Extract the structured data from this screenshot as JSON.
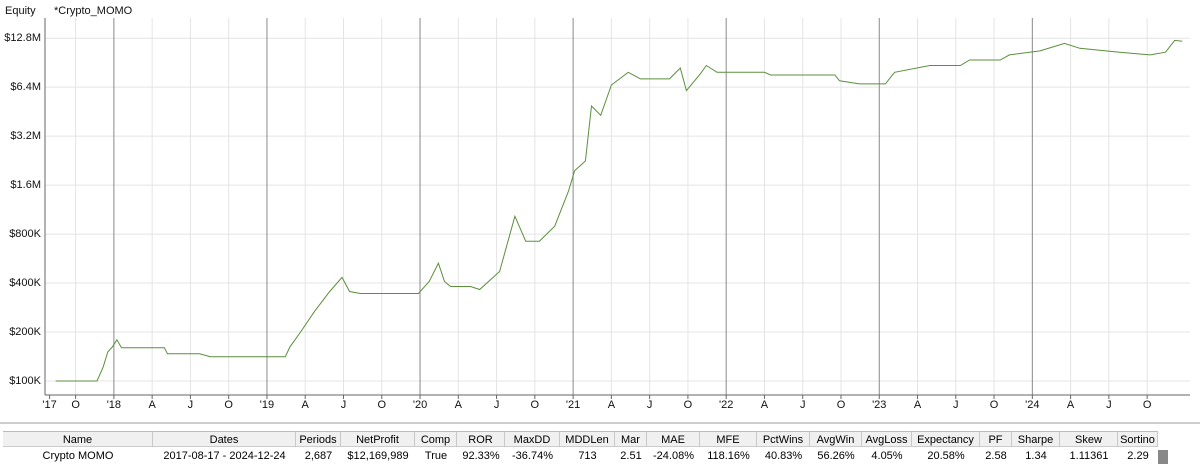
{
  "chart_data": {
    "type": "line",
    "title": "Equity",
    "log_scale": true,
    "grid": true,
    "x": [
      2017.62,
      2017.89,
      2017.93,
      2017.96,
      2017.99,
      2018.02,
      2018.05,
      2018.33,
      2018.35,
      2018.56,
      2018.63,
      2019.12,
      2019.15,
      2019.22,
      2019.31,
      2019.41,
      2019.49,
      2019.54,
      2019.61,
      2019.99,
      2020.06,
      2020.12,
      2020.16,
      2020.2,
      2020.33,
      2020.39,
      2020.52,
      2020.62,
      2020.69,
      2020.78,
      2020.88,
      2020.97,
      2021.01,
      2021.08,
      2021.12,
      2021.18,
      2021.25,
      2021.36,
      2021.44,
      2021.63,
      2021.7,
      2021.74,
      2021.83,
      2021.87,
      2021.94,
      2022.25,
      2022.29,
      2022.71,
      2022.74,
      2022.87,
      2023.04,
      2023.1,
      2023.33,
      2023.53,
      2023.59,
      2023.79,
      2023.85,
      2024.05,
      2024.21,
      2024.31,
      2024.44,
      2024.57,
      2024.77,
      2024.87,
      2024.93,
      2024.98
    ],
    "series": [
      {
        "name": "*Crypto_MOMO",
        "color": "#5b8f3c",
        "values": [
          100000,
          100000,
          122000,
          151000,
          162000,
          179000,
          160000,
          160000,
          147000,
          147000,
          141000,
          141000,
          162000,
          200000,
          267000,
          355000,
          433000,
          355000,
          345000,
          345000,
          409000,
          530000,
          409000,
          381000,
          381000,
          365000,
          471000,
          1030000,
          723000,
          723000,
          894000,
          1470000,
          1960000,
          2250000,
          4900000,
          4300000,
          6600000,
          7900000,
          7200000,
          7200000,
          8400000,
          6100000,
          7700000,
          8700000,
          7900000,
          7900000,
          7600000,
          7600000,
          7000000,
          6700000,
          6700000,
          7900000,
          8700000,
          8700000,
          9400000,
          9400000,
          10100000,
          10700000,
          11900000,
          11100000,
          10800000,
          10500000,
          10100000,
          10500000,
          12400000,
          12270000
        ]
      }
    ],
    "xlim": [
      2017.55,
      2025.03
    ],
    "xticks": [
      {
        "value": 2017.58,
        "label": "'17"
      },
      {
        "value": 2017.75,
        "label": "O"
      },
      {
        "value": 2018,
        "label": "'18"
      },
      {
        "value": 2018.25,
        "label": "A"
      },
      {
        "value": 2018.5,
        "label": "J"
      },
      {
        "value": 2018.75,
        "label": "O"
      },
      {
        "value": 2019,
        "label": "'19"
      },
      {
        "value": 2019.25,
        "label": "A"
      },
      {
        "value": 2019.5,
        "label": "J"
      },
      {
        "value": 2019.75,
        "label": "O"
      },
      {
        "value": 2020,
        "label": "'20"
      },
      {
        "value": 2020.25,
        "label": "A"
      },
      {
        "value": 2020.5,
        "label": "J"
      },
      {
        "value": 2020.75,
        "label": "O"
      },
      {
        "value": 2021,
        "label": "'21"
      },
      {
        "value": 2021.25,
        "label": "A"
      },
      {
        "value": 2021.5,
        "label": "J"
      },
      {
        "value": 2021.75,
        "label": "O"
      },
      {
        "value": 2022,
        "label": "'22"
      },
      {
        "value": 2022.25,
        "label": "A"
      },
      {
        "value": 2022.5,
        "label": "J"
      },
      {
        "value": 2022.75,
        "label": "O"
      },
      {
        "value": 2023,
        "label": "'23"
      },
      {
        "value": 2023.25,
        "label": "A"
      },
      {
        "value": 2023.5,
        "label": "J"
      },
      {
        "value": 2023.75,
        "label": "O"
      },
      {
        "value": 2024,
        "label": "'24"
      },
      {
        "value": 2024.25,
        "label": "A"
      },
      {
        "value": 2024.5,
        "label": "J"
      },
      {
        "value": 2024.75,
        "label": "O"
      }
    ],
    "ylim": [
      82000,
      16100000
    ],
    "yticks": [
      {
        "value": 100000,
        "label": "$100K"
      },
      {
        "value": 200000,
        "label": "$200K"
      },
      {
        "value": 400000,
        "label": "$400K"
      },
      {
        "value": 800000,
        "label": "$800K"
      },
      {
        "value": 1600000,
        "label": "$1.6M"
      },
      {
        "value": 3200000,
        "label": "$3.2M"
      },
      {
        "value": 6400000,
        "label": "$6.4M"
      },
      {
        "value": 12800000,
        "label": "$12.8M"
      }
    ]
  },
  "table": {
    "columns": [
      "Name",
      "Dates",
      "Periods",
      "NetProfit",
      "Comp",
      "ROR",
      "MaxDD",
      "MDDLen",
      "Mar",
      "MAE",
      "MFE",
      "PctWins",
      "AvgWin",
      "AvgLoss",
      "Expectancy",
      "PF",
      "Sharpe",
      "Skew",
      "Sortino"
    ],
    "rows": [
      [
        "Crypto MOMO",
        "2017-08-17 - 2024-12-24",
        "2,687",
        "$12,169,989",
        "True",
        "92.33%",
        "-36.74%",
        "713",
        "2.51",
        "-24.08%",
        "118.16%",
        "40.83%",
        "56.26%",
        "4.05%",
        "20.58%",
        "2.58",
        "1.34",
        "1.11361",
        "2.29"
      ]
    ]
  }
}
